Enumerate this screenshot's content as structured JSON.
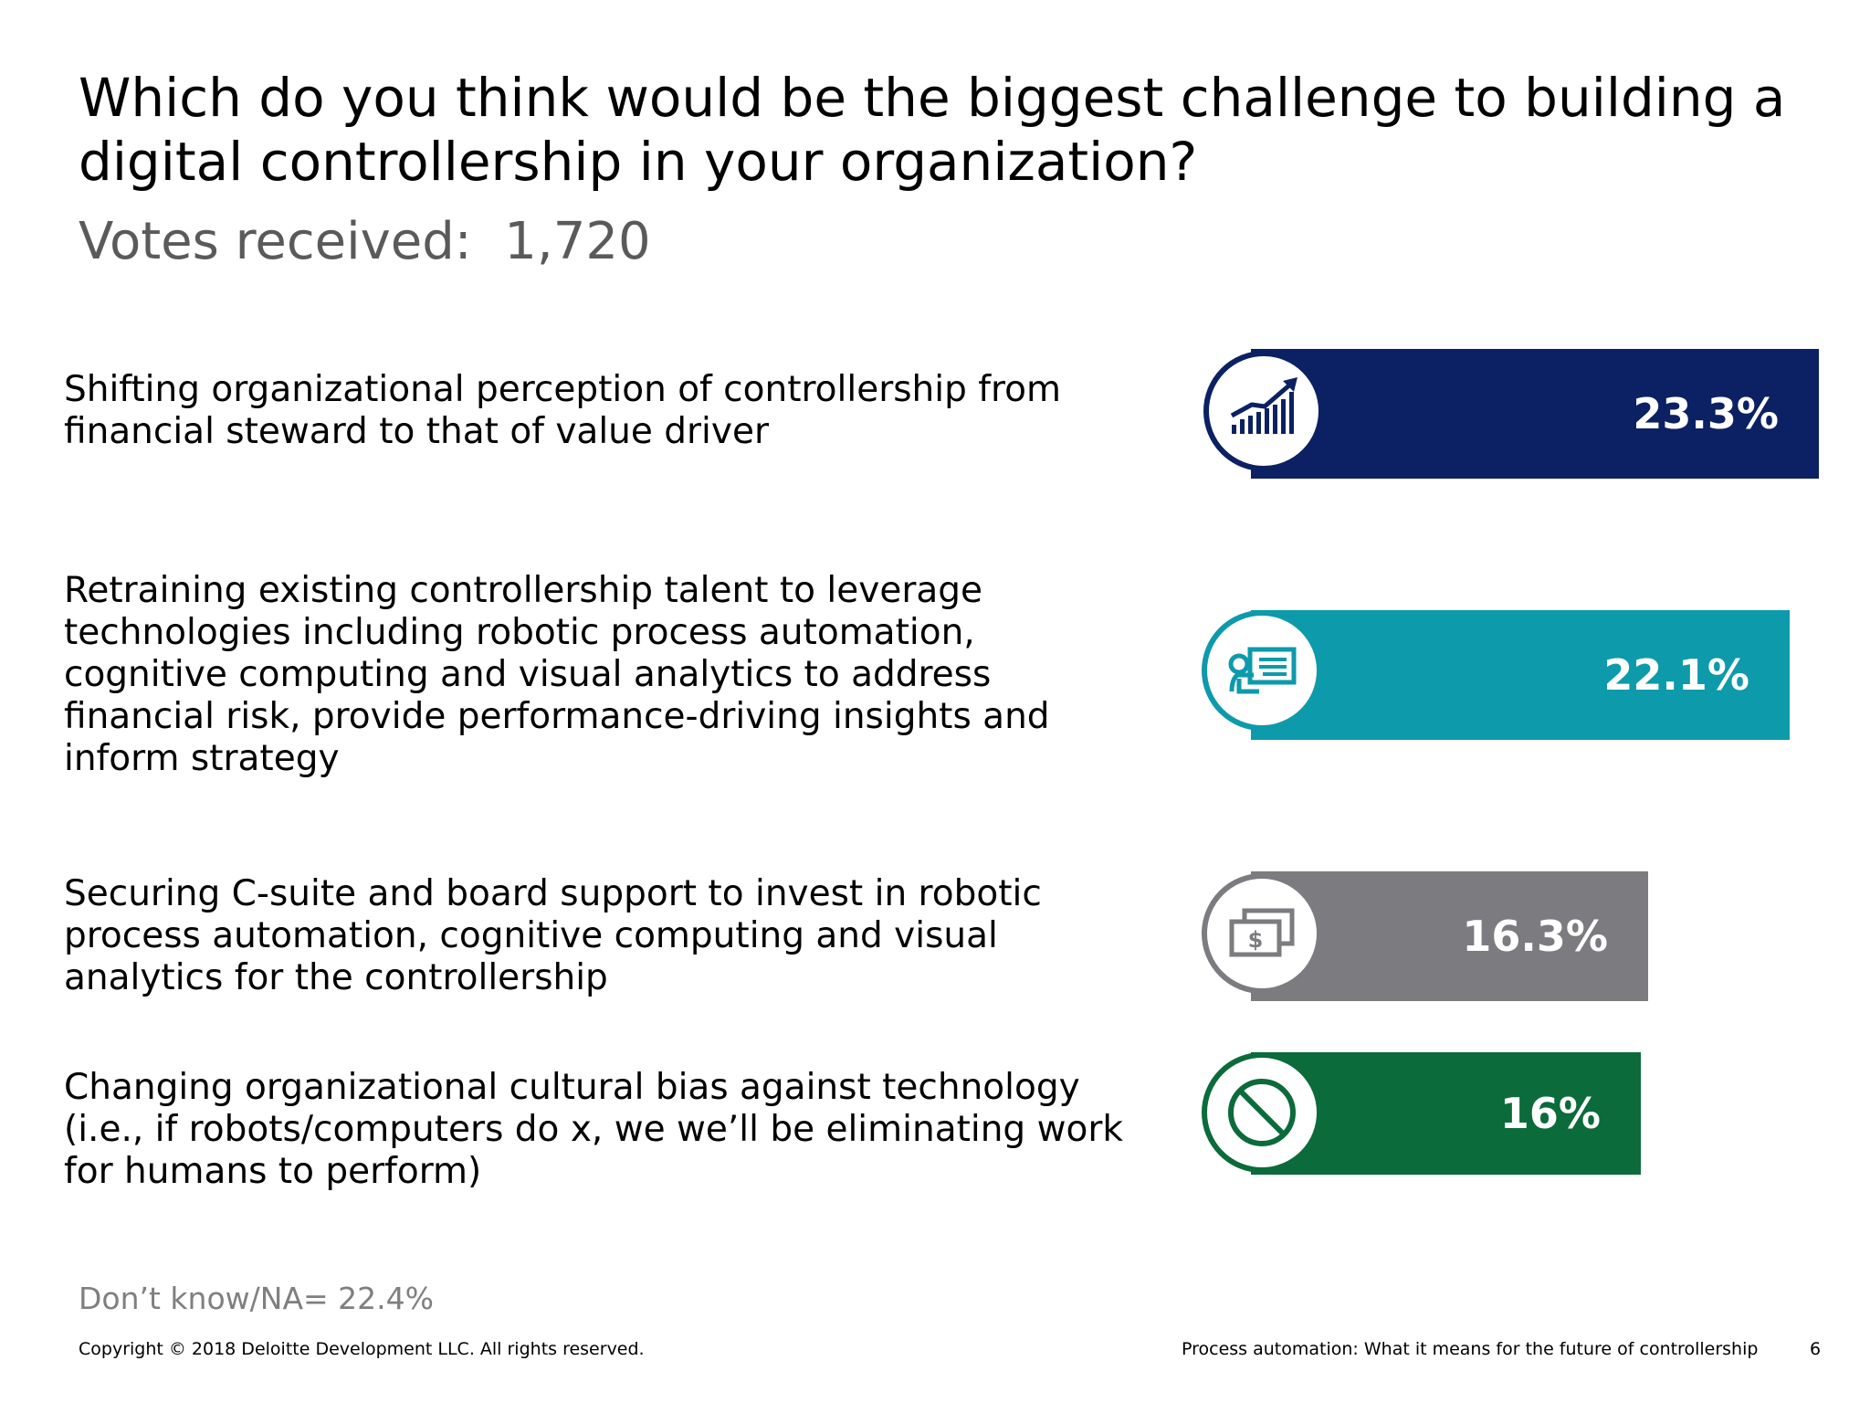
{
  "slide": {
    "title": "Which do you think would be the biggest challenge to building a digital controllership in your organization?",
    "votes": "Votes received:  1,720",
    "note": "Don’t know/NA= 22.4%"
  },
  "chart_data": {
    "type": "bar",
    "orientation": "horizontal",
    "categories": [
      "Shifting organizational perception of controllership from financial steward to that of value driver",
      "Retraining existing controllership talent to leverage technologies including robotic process automation, cognitive computing and visual analytics to address financial risk, provide performance-driving insights and inform strategy",
      "Securing C-suite and board support to invest in robotic process automation, cognitive computing and visual analytics for the controllership",
      "Changing organizational cultural bias against technology (i.e., if robots/computers do x, we we’ll be eliminating work for humans to perform)"
    ],
    "values": [
      23.3,
      22.1,
      16.3,
      16
    ],
    "value_labels": [
      "23.3%",
      "22.1%",
      "16.3%",
      "16%"
    ],
    "colors": [
      "#0c2163",
      "#0d9aab",
      "#7b7b80",
      "#0b6b3a"
    ],
    "icons": [
      "growth-chart-icon",
      "presentation-board-icon",
      "money-bills-icon",
      "prohibited-icon"
    ],
    "unit": "%"
  },
  "footer": {
    "copyright": "Copyright © 2018 Deloitte Development LLC. All rights reserved.",
    "deck_title": "Process automation: What it means for the future of controllership",
    "page_number": "6"
  }
}
